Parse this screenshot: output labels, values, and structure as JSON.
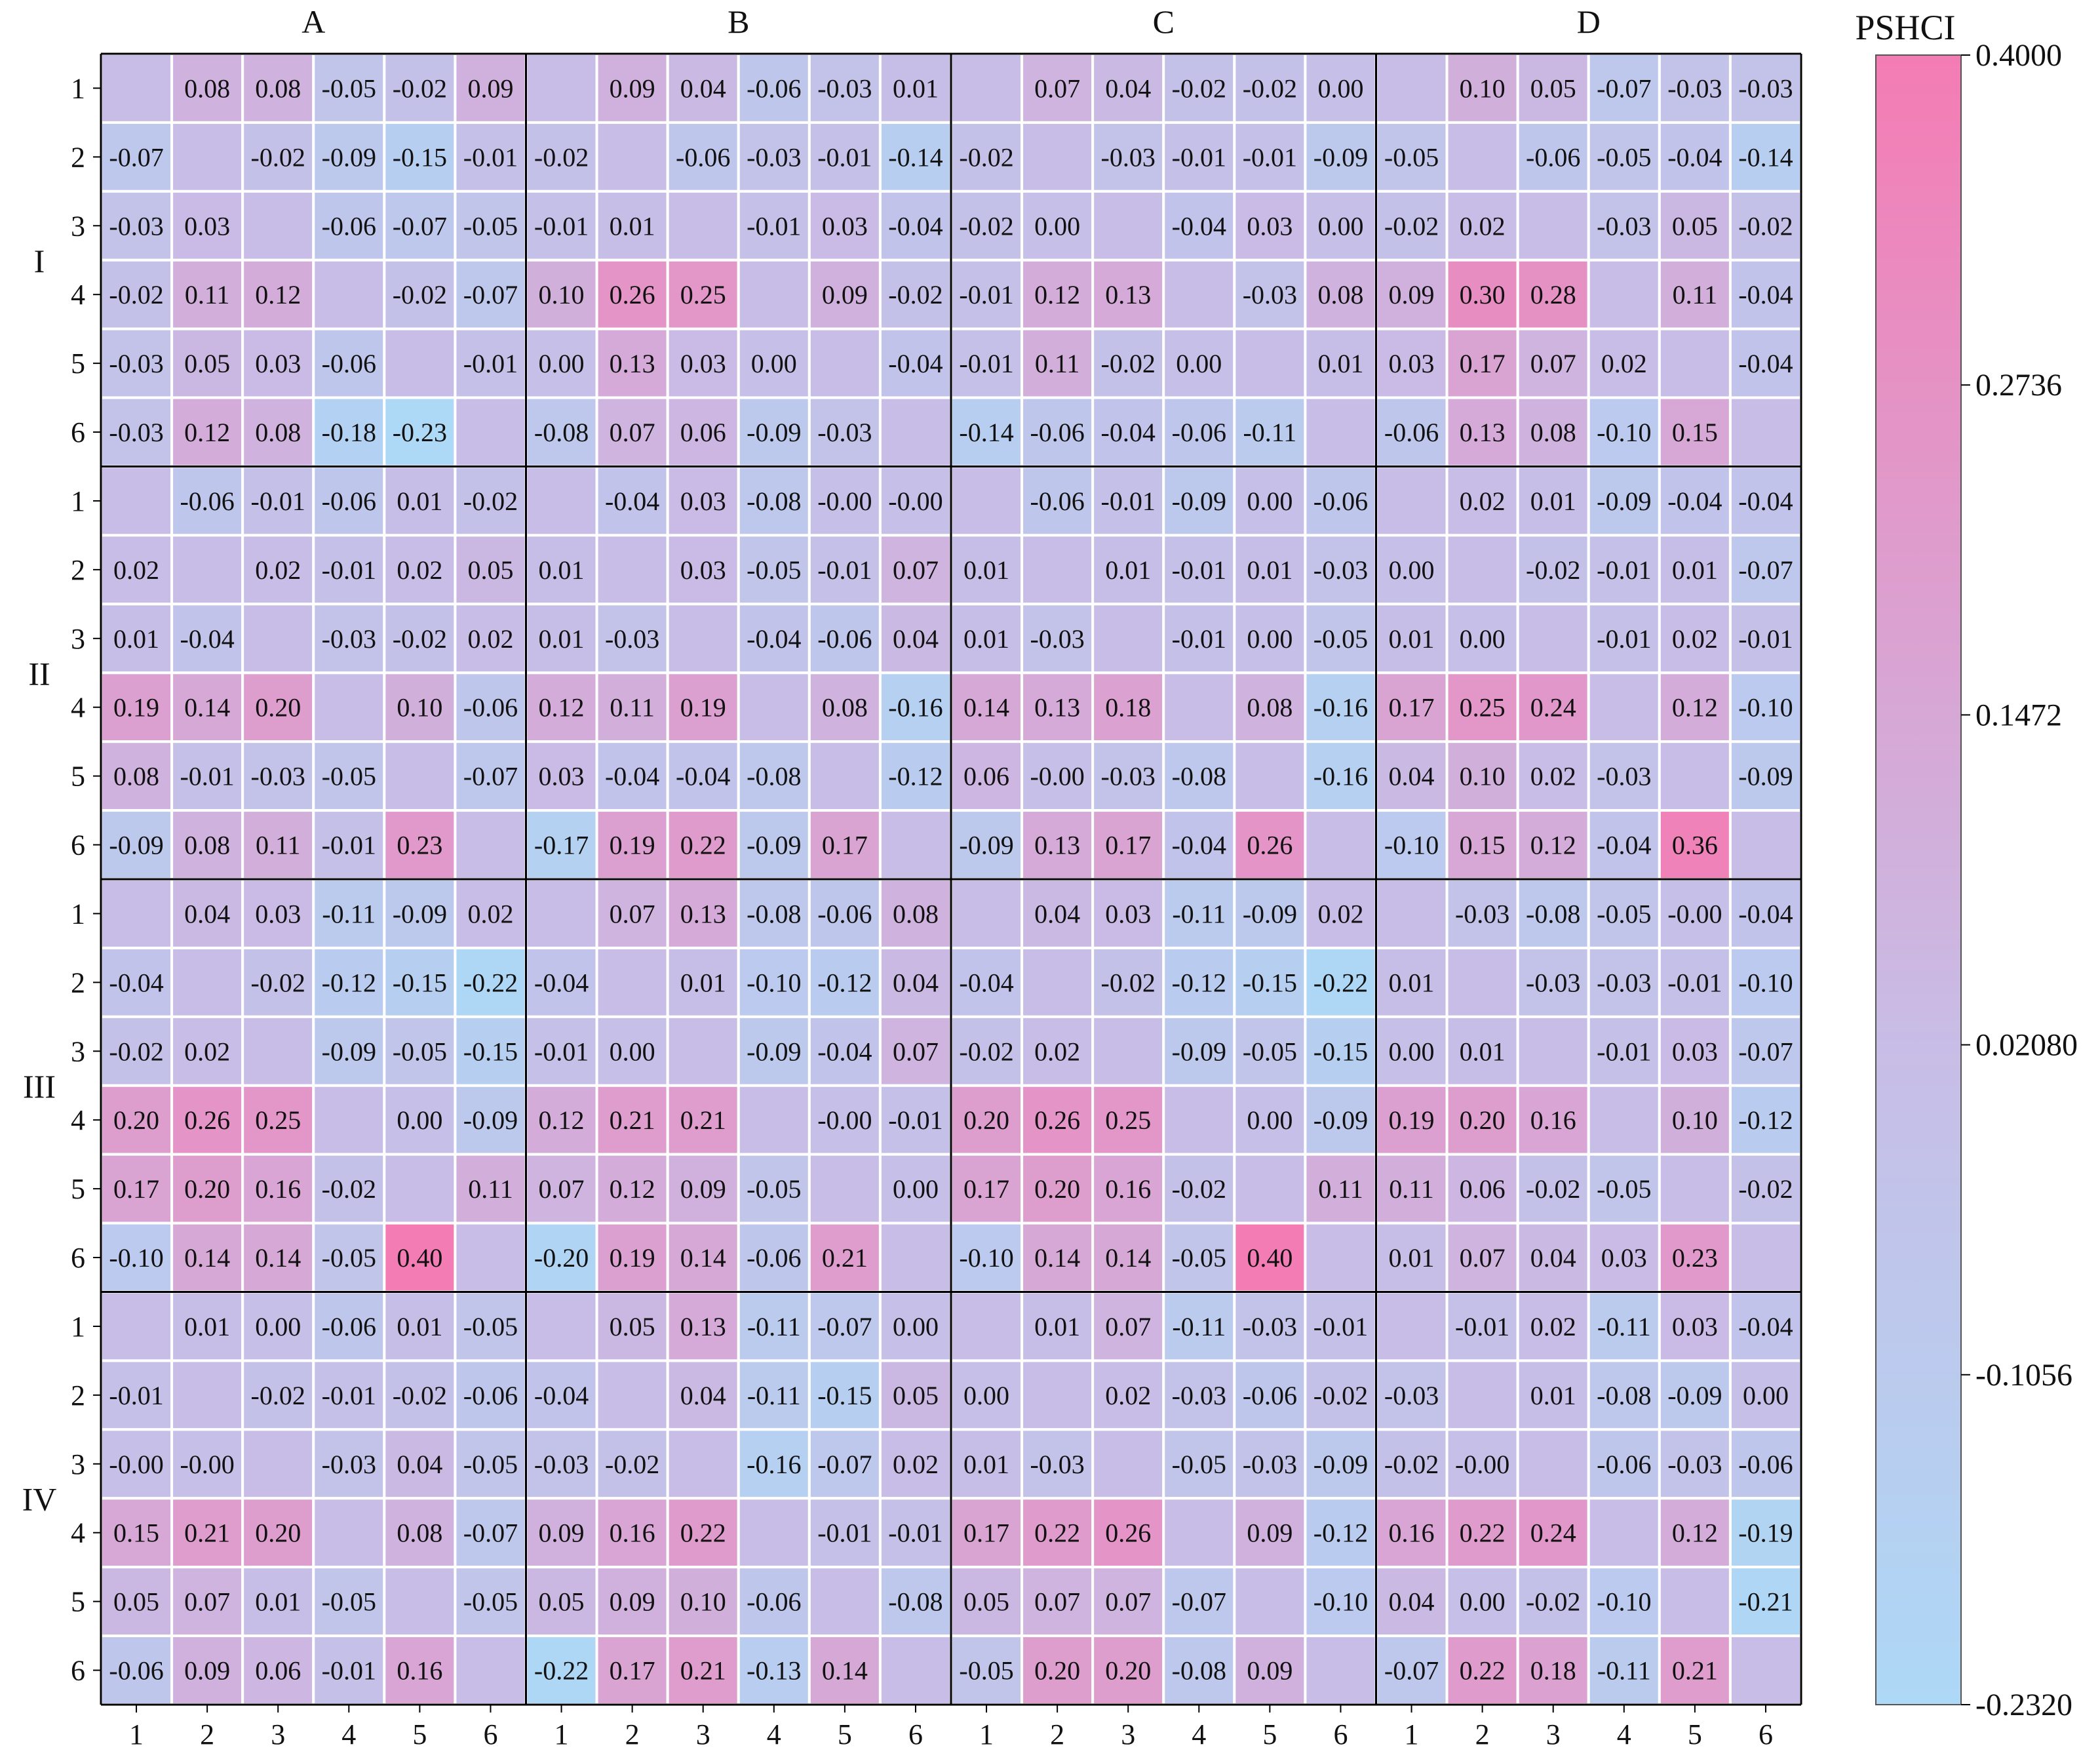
{
  "chart_data": {
    "type": "heatmap",
    "colorbar_title": "PSHCI",
    "color_range": [
      -0.232,
      0.4
    ],
    "colorbar_ticks": [
      "0.4000",
      "0.2736",
      "0.1472",
      "0.02080",
      "-0.1056",
      "-0.2320"
    ],
    "colorbar_tick_values": [
      0.4,
      0.2736,
      0.1472,
      0.0208,
      -0.1056,
      -0.232
    ],
    "colors": {
      "low": "#add8f6",
      "mid": "#c8bde6",
      "high": "#f47cb4",
      "grid_line": "#ffffff",
      "block_line": "#000000"
    },
    "column_groups": [
      "A",
      "B",
      "C",
      "D"
    ],
    "row_groups": [
      "I",
      "II",
      "III",
      "IV"
    ],
    "tick_labels": [
      "1",
      "2",
      "3",
      "4",
      "5",
      "6"
    ],
    "blocks": [
      [
        [
          [
            null,
            "0.08",
            "0.08",
            "-0.05",
            "-0.02",
            "0.09"
          ],
          [
            "-0.07",
            null,
            "-0.02",
            "-0.09",
            "-0.15",
            "-0.01"
          ],
          [
            "-0.03",
            "0.03",
            null,
            "-0.06",
            "-0.07",
            "-0.05"
          ],
          [
            "-0.02",
            "0.11",
            "0.12",
            null,
            "-0.02",
            "-0.07"
          ],
          [
            "-0.03",
            "0.05",
            "0.03",
            "-0.06",
            null,
            "-0.01"
          ],
          [
            "-0.03",
            "0.12",
            "0.08",
            "-0.18",
            "-0.23",
            null
          ]
        ],
        [
          [
            null,
            "0.09",
            "0.04",
            "-0.06",
            "-0.03",
            "0.01"
          ],
          [
            "-0.02",
            null,
            "-0.06",
            "-0.03",
            "-0.01",
            "-0.14"
          ],
          [
            "-0.01",
            "0.01",
            null,
            "-0.01",
            "0.03",
            "-0.04"
          ],
          [
            "0.10",
            "0.26",
            "0.25",
            null,
            "0.09",
            "-0.02"
          ],
          [
            "0.00",
            "0.13",
            "0.03",
            "0.00",
            null,
            "-0.04"
          ],
          [
            "-0.08",
            "0.07",
            "0.06",
            "-0.09",
            "-0.03",
            null
          ]
        ],
        [
          [
            null,
            "0.07",
            "0.04",
            "-0.02",
            "-0.02",
            "0.00"
          ],
          [
            "-0.02",
            null,
            "-0.03",
            "-0.01",
            "-0.01",
            "-0.09"
          ],
          [
            "-0.02",
            "0.00",
            null,
            "-0.04",
            "0.03",
            "0.00"
          ],
          [
            "-0.01",
            "0.12",
            "0.13",
            null,
            "-0.03",
            "0.08"
          ],
          [
            "-0.01",
            "0.11",
            "-0.02",
            "0.00",
            null,
            "0.01"
          ],
          [
            "-0.14",
            "-0.06",
            "-0.04",
            "-0.06",
            "-0.11",
            null
          ]
        ],
        [
          [
            null,
            "0.10",
            "0.05",
            "-0.07",
            "-0.03",
            "-0.03"
          ],
          [
            "-0.05",
            null,
            "-0.06",
            "-0.05",
            "-0.04",
            "-0.14"
          ],
          [
            "-0.02",
            "0.02",
            null,
            "-0.03",
            "0.05",
            "-0.02"
          ],
          [
            "0.09",
            "0.30",
            "0.28",
            null,
            "0.11",
            "-0.04"
          ],
          [
            "0.03",
            "0.17",
            "0.07",
            "0.02",
            null,
            "-0.04"
          ],
          [
            "-0.06",
            "0.13",
            "0.08",
            "-0.10",
            "0.15",
            null
          ]
        ]
      ],
      [
        [
          [
            null,
            "-0.06",
            "-0.01",
            "-0.06",
            "0.01",
            "-0.02"
          ],
          [
            "0.02",
            null,
            "0.02",
            "-0.01",
            "0.02",
            "0.05"
          ],
          [
            "0.01",
            "-0.04",
            null,
            "-0.03",
            "-0.02",
            "0.02"
          ],
          [
            "0.19",
            "0.14",
            "0.20",
            null,
            "0.10",
            "-0.06"
          ],
          [
            "0.08",
            "-0.01",
            "-0.03",
            "-0.05",
            null,
            "-0.07"
          ],
          [
            "-0.09",
            "0.08",
            "0.11",
            "-0.01",
            "0.23",
            null
          ]
        ],
        [
          [
            null,
            "-0.04",
            "0.03",
            "-0.08",
            "-0.00",
            "-0.00"
          ],
          [
            "0.01",
            null,
            "0.03",
            "-0.05",
            "-0.01",
            "0.07"
          ],
          [
            "0.01",
            "-0.03",
            null,
            "-0.04",
            "-0.06",
            "0.04"
          ],
          [
            "0.12",
            "0.11",
            "0.19",
            null,
            "0.08",
            "-0.16"
          ],
          [
            "0.03",
            "-0.04",
            "-0.04",
            "-0.08",
            null,
            "-0.12"
          ],
          [
            "-0.17",
            "0.19",
            "0.22",
            "-0.09",
            "0.17",
            null
          ]
        ],
        [
          [
            null,
            "-0.06",
            "-0.01",
            "-0.09",
            "0.00",
            "-0.06"
          ],
          [
            "0.01",
            null,
            "0.01",
            "-0.01",
            "0.01",
            "-0.03"
          ],
          [
            "0.01",
            "-0.03",
            null,
            "-0.01",
            "0.00",
            "-0.05"
          ],
          [
            "0.14",
            "0.13",
            "0.18",
            null,
            "0.08",
            "-0.16"
          ],
          [
            "0.06",
            "-0.00",
            "-0.03",
            "-0.08",
            null,
            "-0.16"
          ],
          [
            "-0.09",
            "0.13",
            "0.17",
            "-0.04",
            "0.26",
            null
          ]
        ],
        [
          [
            null,
            "0.02",
            "0.01",
            "-0.09",
            "-0.04",
            "-0.04"
          ],
          [
            "0.00",
            null,
            "-0.02",
            "-0.01",
            "0.01",
            "-0.07"
          ],
          [
            "0.01",
            "0.00",
            null,
            "-0.01",
            "0.02",
            "-0.01"
          ],
          [
            "0.17",
            "0.25",
            "0.24",
            null,
            "0.12",
            "-0.10"
          ],
          [
            "0.04",
            "0.10",
            "0.02",
            "-0.03",
            null,
            "-0.09"
          ],
          [
            "-0.10",
            "0.15",
            "0.12",
            "-0.04",
            "0.36",
            null
          ]
        ]
      ],
      [
        [
          [
            null,
            "0.04",
            "0.03",
            "-0.11",
            "-0.09",
            "0.02"
          ],
          [
            "-0.04",
            null,
            "-0.02",
            "-0.12",
            "-0.15",
            "-0.22"
          ],
          [
            "-0.02",
            "0.02",
            null,
            "-0.09",
            "-0.05",
            "-0.15"
          ],
          [
            "0.20",
            "0.26",
            "0.25",
            null,
            "0.00",
            "-0.09"
          ],
          [
            "0.17",
            "0.20",
            "0.16",
            "-0.02",
            null,
            "0.11"
          ],
          [
            "-0.10",
            "0.14",
            "0.14",
            "-0.05",
            "0.40",
            null
          ]
        ],
        [
          [
            null,
            "0.07",
            "0.13",
            "-0.08",
            "-0.06",
            "0.08"
          ],
          [
            "-0.04",
            null,
            "0.01",
            "-0.10",
            "-0.12",
            "0.04"
          ],
          [
            "-0.01",
            "0.00",
            null,
            "-0.09",
            "-0.04",
            "0.07"
          ],
          [
            "0.12",
            "0.21",
            "0.21",
            null,
            "-0.00",
            "-0.01"
          ],
          [
            "0.07",
            "0.12",
            "0.09",
            "-0.05",
            null,
            "0.00"
          ],
          [
            "-0.20",
            "0.19",
            "0.14",
            "-0.06",
            "0.21",
            null
          ]
        ],
        [
          [
            null,
            "0.04",
            "0.03",
            "-0.11",
            "-0.09",
            "0.02"
          ],
          [
            "-0.04",
            null,
            "-0.02",
            "-0.12",
            "-0.15",
            "-0.22"
          ],
          [
            "-0.02",
            "0.02",
            null,
            "-0.09",
            "-0.05",
            "-0.15"
          ],
          [
            "0.20",
            "0.26",
            "0.25",
            null,
            "0.00",
            "-0.09"
          ],
          [
            "0.17",
            "0.20",
            "0.16",
            "-0.02",
            null,
            "0.11"
          ],
          [
            "-0.10",
            "0.14",
            "0.14",
            "-0.05",
            "0.40",
            null
          ]
        ],
        [
          [
            null,
            "-0.03",
            "-0.08",
            "-0.05",
            "-0.00",
            "-0.04"
          ],
          [
            "0.01",
            null,
            "-0.03",
            "-0.03",
            "-0.01",
            "-0.10"
          ],
          [
            "0.00",
            "0.01",
            null,
            "-0.01",
            "0.03",
            "-0.07"
          ],
          [
            "0.19",
            "0.20",
            "0.16",
            null,
            "0.10",
            "-0.12"
          ],
          [
            "0.11",
            "0.06",
            "-0.02",
            "-0.05",
            null,
            "-0.02"
          ],
          [
            "0.01",
            "0.07",
            "0.04",
            "0.03",
            "0.23",
            null
          ]
        ]
      ],
      [
        [
          [
            null,
            "0.01",
            "0.00",
            "-0.06",
            "0.01",
            "-0.05"
          ],
          [
            "-0.01",
            null,
            "-0.02",
            "-0.01",
            "-0.02",
            "-0.06"
          ],
          [
            "-0.00",
            "-0.00",
            null,
            "-0.03",
            "0.04",
            "-0.05"
          ],
          [
            "0.15",
            "0.21",
            "0.20",
            null,
            "0.08",
            "-0.07"
          ],
          [
            "0.05",
            "0.07",
            "0.01",
            "-0.05",
            null,
            "-0.05"
          ],
          [
            "-0.06",
            "0.09",
            "0.06",
            "-0.01",
            "0.16",
            null
          ]
        ],
        [
          [
            null,
            "0.05",
            "0.13",
            "-0.11",
            "-0.07",
            "0.00"
          ],
          [
            "-0.04",
            null,
            "0.04",
            "-0.11",
            "-0.15",
            "0.05"
          ],
          [
            "-0.03",
            "-0.02",
            null,
            "-0.16",
            "-0.07",
            "0.02"
          ],
          [
            "0.09",
            "0.16",
            "0.22",
            null,
            "-0.01",
            "-0.01"
          ],
          [
            "0.05",
            "0.09",
            "0.10",
            "-0.06",
            null,
            "-0.08"
          ],
          [
            "-0.22",
            "0.17",
            "0.21",
            "-0.13",
            "0.14",
            null
          ]
        ],
        [
          [
            null,
            "0.01",
            "0.07",
            "-0.11",
            "-0.03",
            "-0.01"
          ],
          [
            "0.00",
            null,
            "0.02",
            "-0.03",
            "-0.06",
            "-0.02"
          ],
          [
            "0.01",
            "-0.03",
            null,
            "-0.05",
            "-0.03",
            "-0.09"
          ],
          [
            "0.17",
            "0.22",
            "0.26",
            null,
            "0.09",
            "-0.12"
          ],
          [
            "0.05",
            "0.07",
            "0.07",
            "-0.07",
            null,
            "-0.10"
          ],
          [
            "-0.05",
            "0.20",
            "0.20",
            "-0.08",
            "0.09",
            null
          ]
        ],
        [
          [
            null,
            "-0.01",
            "0.02",
            "-0.11",
            "0.03",
            "-0.04"
          ],
          [
            "-0.03",
            null,
            "0.01",
            "-0.08",
            "-0.09",
            "0.00"
          ],
          [
            "-0.02",
            "-0.00",
            null,
            "-0.06",
            "-0.03",
            "-0.06"
          ],
          [
            "0.16",
            "0.22",
            "0.24",
            null,
            "0.12",
            "-0.19"
          ],
          [
            "0.04",
            "0.00",
            "-0.02",
            "-0.10",
            null,
            "-0.21"
          ],
          [
            "-0.07",
            "0.22",
            "0.18",
            "-0.11",
            "0.21",
            null
          ]
        ]
      ]
    ]
  }
}
